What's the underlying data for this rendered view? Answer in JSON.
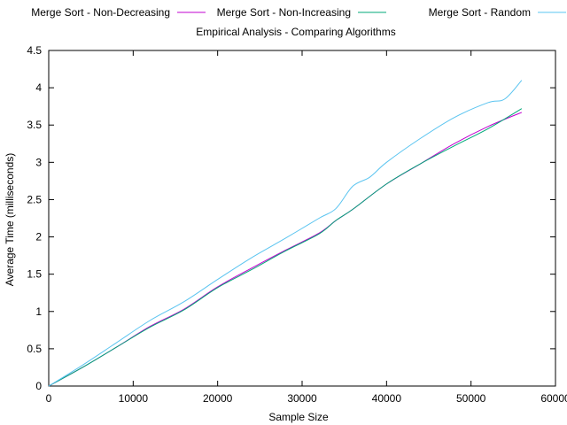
{
  "chart_data": {
    "type": "line",
    "title": "Empirical Analysis - Comparing Algorithms",
    "xlabel": "Sample Size",
    "ylabel": "Average Time (milliseconds)",
    "xlim": [
      0,
      60000
    ],
    "ylim": [
      0,
      4.5
    ],
    "xticks": [
      0,
      10000,
      20000,
      30000,
      40000,
      50000,
      60000
    ],
    "yticks": [
      0,
      0.5,
      1,
      1.5,
      2,
      2.5,
      3,
      3.5,
      4,
      4.5
    ],
    "grid": false,
    "legend_placement": "top",
    "series": [
      {
        "name": "Merge Sort - Non-Decreasing",
        "color": "#c000d0",
        "x": [
          0,
          4000,
          8000,
          12000,
          16000,
          20000,
          24000,
          28000,
          32000,
          34000,
          36000,
          40000,
          44000,
          48000,
          52000,
          56000
        ],
        "y": [
          0,
          0.25,
          0.52,
          0.8,
          1.03,
          1.33,
          1.58,
          1.82,
          2.05,
          2.22,
          2.37,
          2.71,
          2.98,
          3.25,
          3.48,
          3.67
        ]
      },
      {
        "name": "Merge Sort - Non-Increasing",
        "color": "#00a878",
        "x": [
          0,
          4000,
          8000,
          12000,
          16000,
          20000,
          24000,
          28000,
          32000,
          34000,
          36000,
          40000,
          44000,
          48000,
          52000,
          56000
        ],
        "y": [
          0,
          0.25,
          0.52,
          0.79,
          1.02,
          1.32,
          1.56,
          1.81,
          2.04,
          2.22,
          2.37,
          2.71,
          2.98,
          3.22,
          3.45,
          3.72
        ]
      },
      {
        "name": "Merge Sort - Random",
        "color": "#5ac4f0",
        "x": [
          0,
          4000,
          8000,
          12000,
          16000,
          20000,
          24000,
          28000,
          32000,
          34000,
          36000,
          38000,
          40000,
          44000,
          48000,
          52000,
          54000,
          56000
        ],
        "y": [
          0,
          0.28,
          0.58,
          0.88,
          1.13,
          1.43,
          1.72,
          1.98,
          2.25,
          2.38,
          2.68,
          2.8,
          3.0,
          3.32,
          3.6,
          3.8,
          3.85,
          4.1
        ]
      }
    ]
  }
}
